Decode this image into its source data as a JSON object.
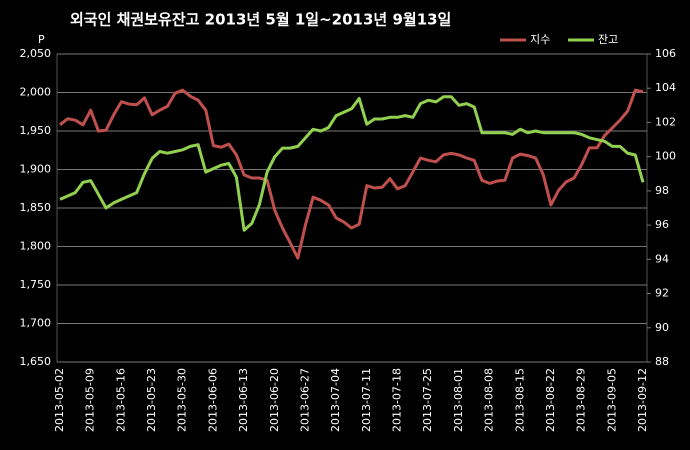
{
  "chart_data": {
    "type": "line",
    "title": "외국인 채권보유잔고  2013년 5월 1일~2013년 9월13일",
    "y_unit": "P",
    "categories": [
      "2013-05-02",
      null,
      null,
      null,
      "2013-05-09",
      null,
      null,
      null,
      "2013-05-16",
      null,
      null,
      null,
      "2013-05-23",
      null,
      null,
      null,
      "2013-05-30",
      null,
      null,
      null,
      "2013-06-06",
      null,
      null,
      null,
      "2013-06-13",
      null,
      null,
      null,
      "2013-06-20",
      null,
      null,
      null,
      "2013-06-27",
      null,
      null,
      null,
      "2013-07-04",
      null,
      null,
      null,
      "2013-07-11",
      null,
      null,
      null,
      "2013-07-18",
      null,
      null,
      null,
      "2013-07-25",
      null,
      null,
      null,
      "2013-08-01",
      null,
      null,
      null,
      "2013-08-08",
      null,
      null,
      null,
      "2013-08-15",
      null,
      null,
      null,
      "2013-08-22",
      null,
      null,
      null,
      "2013-08-29",
      null,
      null,
      null,
      "2013-09-05",
      null,
      null,
      null,
      "2013-09-12"
    ],
    "series": [
      {
        "name": "지수",
        "color": "#c0504d",
        "values": [
          1958,
          1966,
          1964,
          1958,
          1977,
          1950,
          1951,
          1971,
          1988,
          1985,
          1984,
          1993,
          1971,
          1977,
          1982,
          1999,
          2003,
          1995,
          1990,
          1977,
          1931,
          1929,
          1933,
          1919,
          1893,
          1889,
          1889,
          1886,
          1847,
          1824,
          1805,
          1785,
          1828,
          1864,
          1860,
          1854,
          1837,
          1832,
          1824,
          1829,
          1879,
          1876,
          1877,
          1888,
          1875,
          1879,
          1897,
          1915,
          1912,
          1910,
          1919,
          1921,
          1919,
          1915,
          1912,
          1886,
          1882,
          1885,
          1886,
          1915,
          1920,
          1918,
          1915,
          1893,
          1854,
          1873,
          1884,
          1889,
          1906,
          1928,
          1928,
          1944,
          1954,
          1964,
          1976,
          2003,
          2001
        ]
      },
      {
        "name": "잔고",
        "color": "#92d050",
        "axis": "y2",
        "values": [
          97.5,
          97.7,
          97.9,
          98.5,
          98.6,
          97.8,
          97.0,
          97.3,
          97.5,
          97.7,
          97.9,
          99.0,
          99.9,
          100.3,
          100.2,
          100.3,
          100.4,
          100.6,
          100.7,
          99.1,
          99.3,
          99.5,
          99.6,
          98.8,
          95.7,
          96.1,
          97.2,
          99.1,
          100.0,
          100.5,
          100.5,
          100.6,
          101.1,
          101.6,
          101.5,
          101.7,
          102.4,
          102.6,
          102.8,
          103.4,
          101.9,
          102.2,
          102.2,
          102.3,
          102.3,
          102.4,
          102.3,
          103.1,
          103.3,
          103.2,
          103.5,
          103.5,
          103.0,
          103.1,
          102.9,
          101.4,
          101.4,
          101.4,
          101.4,
          101.3,
          101.6,
          101.4,
          101.5,
          101.4,
          101.4,
          101.4,
          101.4,
          101.4,
          101.3,
          101.1,
          101.0,
          100.9,
          100.6,
          100.6,
          100.2,
          100.1,
          98.5
        ]
      }
    ],
    "ylim": [
      1650,
      2050
    ],
    "yticks": [
      {
        "value": 1650,
        "label": "1,650"
      },
      {
        "value": 1700,
        "label": "1,700"
      },
      {
        "value": 1750,
        "label": "1,750"
      },
      {
        "value": 1800,
        "label": "1,800"
      },
      {
        "value": 1850,
        "label": "1,850"
      },
      {
        "value": 1900,
        "label": "1,900"
      },
      {
        "value": 1950,
        "label": "1,950"
      },
      {
        "value": 2000,
        "label": "2,000"
      },
      {
        "value": 2050,
        "label": "2,050"
      }
    ],
    "y2lim": [
      88,
      106
    ],
    "y2ticks": [
      88,
      90,
      92,
      94,
      96,
      98,
      100,
      102,
      104,
      106
    ],
    "grid": true,
    "legend": "top-right"
  }
}
